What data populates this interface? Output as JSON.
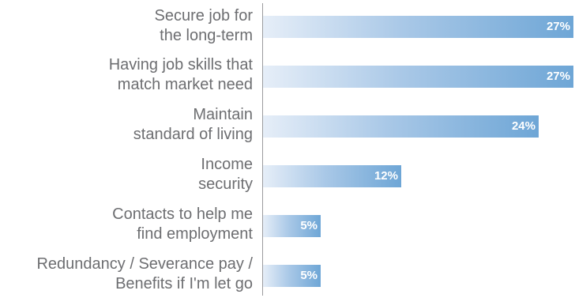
{
  "chart_data": {
    "type": "bar",
    "orientation": "horizontal",
    "categories": [
      [
        "Secure job for",
        "the long-term"
      ],
      [
        "Having job skills that",
        "match market need"
      ],
      [
        "Maintain",
        "standard of living"
      ],
      [
        "Income",
        "security"
      ],
      [
        "Contacts to help me",
        "find employment"
      ],
      [
        "Redundancy / Severance pay /",
        "Benefits if I'm let go"
      ]
    ],
    "values": [
      27,
      27,
      24,
      12,
      5,
      5
    ],
    "value_labels": [
      "27%",
      "27%",
      "24%",
      "12%",
      "5%",
      "5%"
    ],
    "xlim": [
      0,
      27
    ],
    "grid": false,
    "legend": "none",
    "colors": {
      "bar_start": "#e6eef8",
      "bar_end": "#6ea6d6",
      "label_text": "#6d6e71",
      "value_text": "#ffffff",
      "axis": "#9a9b9e"
    }
  }
}
